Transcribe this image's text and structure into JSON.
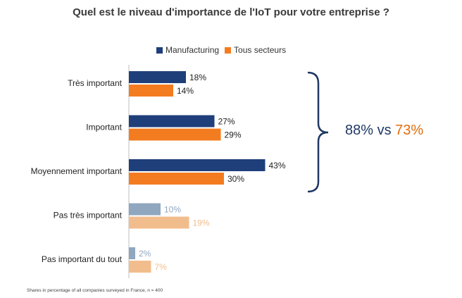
{
  "chart_data": {
    "type": "bar",
    "orientation": "horizontal",
    "title": "Quel est le niveau d'importance de l'IoT pour votre entreprise ?",
    "categories": [
      "Très important",
      "Important",
      "Moyennement important",
      "Pas très important",
      "Pas important du tout"
    ],
    "series": [
      {
        "name": "Manufacturing",
        "values": [
          18,
          27,
          43,
          10,
          2
        ],
        "labels": [
          "18%",
          "27%",
          "43%",
          "10%",
          "2%"
        ],
        "color": "#1f3f7a",
        "faded_color": "#8fa7bf"
      },
      {
        "name": "Tous secteurs",
        "values": [
          14,
          29,
          30,
          19,
          7
        ],
        "labels": [
          "14%",
          "29%",
          "30%",
          "19%",
          "7%"
        ],
        "color": "#f47c20",
        "faded_color": "#f2bd8c"
      }
    ],
    "highlighted_categories": [
      0,
      1,
      2
    ],
    "xlim": [
      0,
      45
    ],
    "legend_position": "top",
    "grid": false
  },
  "summary": {
    "manufacturing": "88%",
    "separator": " vs ",
    "all_sectors": "73%",
    "manufacturing_color": "#1f3864",
    "all_sectors_color": "#e36c0a"
  },
  "footnote": "Shares in percentage of all companies surveyed in France, n = 400"
}
